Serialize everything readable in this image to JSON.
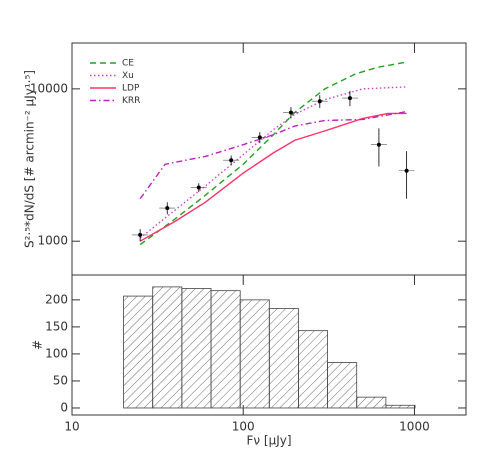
{
  "chart_data": [
    {
      "type": "line",
      "ylabel": "S²·⁵*dN/dS [# arcmin⁻² μJy¹·⁵]",
      "log_x": true,
      "log_y": true,
      "xlim": [
        10,
        2000
      ],
      "ylim": [
        600,
        20000
      ],
      "yticks": [
        1000,
        10000
      ],
      "legend": "upper left",
      "series": [
        {
          "name": "CE",
          "color": "#22a022",
          "style": "dashed",
          "x": [
            25,
            40,
            60,
            100,
            150,
            200,
            300,
            450,
            600,
            900
          ],
          "values": [
            950,
            1400,
            2000,
            3200,
            5000,
            7000,
            10000,
            12500,
            13800,
            15000
          ]
        },
        {
          "name": "Xu",
          "color": "#d040d0",
          "style": "dotted",
          "x": [
            25,
            40,
            60,
            100,
            150,
            200,
            300,
            500,
            900
          ],
          "values": [
            1050,
            1600,
            2300,
            3700,
            5400,
            6800,
            8500,
            10000,
            10300
          ]
        },
        {
          "name": "LDP",
          "color": "#ff3366",
          "style": "solid",
          "x": [
            25,
            40,
            60,
            100,
            150,
            200,
            300,
            500,
            700,
            900
          ],
          "values": [
            1000,
            1350,
            1800,
            2800,
            3800,
            4600,
            5300,
            6400,
            6900,
            6900
          ]
        },
        {
          "name": "KRR",
          "color": "#c020c0",
          "style": "dashdot",
          "x": [
            25,
            35,
            60,
            100,
            150,
            200,
            300,
            500,
            900
          ],
          "values": [
            1900,
            3200,
            3600,
            4300,
            5000,
            5700,
            6200,
            6300,
            7100
          ]
        }
      ],
      "points": {
        "color": "#000000",
        "x": [
          25,
          36,
          55,
          85,
          125,
          190,
          280,
          420,
          620,
          900
        ],
        "values": [
          1100,
          1650,
          2250,
          3400,
          4800,
          7000,
          8300,
          8700,
          4300,
          2900
        ],
        "errors": [
          100,
          150,
          150,
          250,
          400,
          600,
          800,
          1000,
          1200,
          1000
        ]
      }
    },
    {
      "type": "histogram",
      "xlabel": "Fν [μJy]",
      "ylabel": "#",
      "log_x": true,
      "xlim": [
        10,
        2000
      ],
      "xticks": [
        10,
        100,
        1000
      ],
      "ylim": [
        -13,
        246
      ],
      "yticks": [
        0,
        50,
        100,
        150,
        200
      ],
      "color": "#444444",
      "bins": [
        20,
        29.6,
        43.8,
        64.9,
        96,
        142,
        210,
        311,
        460,
        681,
        1008
      ],
      "counts": [
        207,
        224,
        221,
        217,
        200,
        184,
        143,
        84,
        20,
        5
      ]
    }
  ]
}
